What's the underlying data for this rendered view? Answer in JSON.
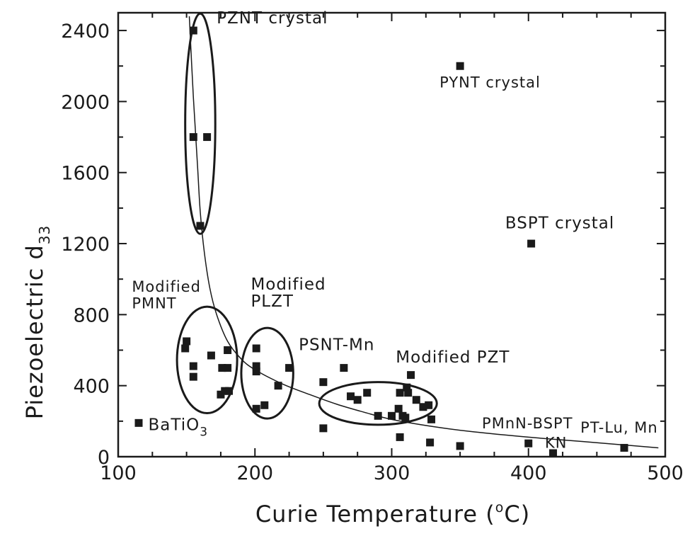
{
  "chart_data": {
    "type": "scatter",
    "title": "",
    "xlabel": "Curie Temperature (°C)",
    "xlabel_main": "Curie Temperature (",
    "xlabel_sup": "o",
    "xlabel_end": "C)",
    "ylabel": "Piezoelectric d33",
    "ylabel_main": "Piezoelectric d",
    "ylabel_sub": "33",
    "xlim": [
      100,
      500
    ],
    "ylim": [
      0,
      2500
    ],
    "xticks": [
      100,
      200,
      300,
      400,
      500
    ],
    "yticks": [
      0,
      400,
      800,
      1200,
      1600,
      2000,
      2400
    ],
    "grid": false,
    "legend": "none",
    "marker_color": "#1a1a1a",
    "series": [
      {
        "group": "PZNT crystal",
        "points": [
          [
            155,
            2400
          ],
          [
            155,
            1800
          ],
          [
            165,
            1800
          ],
          [
            160,
            1300
          ]
        ]
      },
      {
        "group": "PYNT crystal",
        "points": [
          [
            350,
            2200
          ]
        ]
      },
      {
        "group": "BSPT crystal",
        "points": [
          [
            402,
            1200
          ]
        ]
      },
      {
        "group": "Modified PMNT",
        "points": [
          [
            150,
            650
          ],
          [
            149,
            610
          ],
          [
            155,
            510
          ],
          [
            155,
            450
          ],
          [
            168,
            570
          ],
          [
            175,
            350
          ],
          [
            178,
            370
          ],
          [
            176,
            500
          ],
          [
            180,
            500
          ],
          [
            181,
            370
          ],
          [
            180,
            600
          ]
        ]
      },
      {
        "group": "Modified PLZT",
        "points": [
          [
            201,
            610
          ],
          [
            201,
            510
          ],
          [
            201,
            480
          ],
          [
            201,
            270
          ],
          [
            207,
            290
          ],
          [
            217,
            400
          ],
          [
            225,
            500
          ]
        ]
      },
      {
        "group": "PSNT-Mn",
        "points": [
          [
            265,
            500
          ]
        ]
      },
      {
        "group": "Modified PZT",
        "points": [
          [
            250,
            420
          ],
          [
            250,
            160
          ],
          [
            270,
            340
          ],
          [
            275,
            320
          ],
          [
            282,
            360
          ],
          [
            290,
            230
          ],
          [
            300,
            230
          ],
          [
            305,
            270
          ],
          [
            306,
            360
          ],
          [
            306,
            110
          ],
          [
            308,
            230
          ],
          [
            310,
            220
          ],
          [
            311,
            390
          ],
          [
            312,
            360
          ],
          [
            314,
            460
          ],
          [
            318,
            320
          ],
          [
            323,
            280
          ],
          [
            327,
            290
          ],
          [
            329,
            210
          ],
          [
            328,
            80
          ]
        ]
      },
      {
        "group": "BaTiO3",
        "points": [
          [
            115,
            190
          ]
        ]
      },
      {
        "group": "PMnN-BSPT",
        "points": [
          [
            350,
            60
          ],
          [
            400,
            75
          ]
        ]
      },
      {
        "group": "KN",
        "points": [
          [
            418,
            20
          ]
        ]
      },
      {
        "group": "PT-Lu, Mn",
        "points": [
          [
            470,
            50
          ]
        ]
      }
    ],
    "trend_curve": {
      "points": [
        [
          152,
          2480
        ],
        [
          155,
          2020
        ],
        [
          158,
          1640
        ],
        [
          160,
          1380
        ],
        [
          163,
          1150
        ],
        [
          167,
          950
        ],
        [
          172,
          800
        ],
        [
          180,
          650
        ],
        [
          190,
          550
        ],
        [
          200,
          490
        ],
        [
          220,
          410
        ],
        [
          240,
          350
        ],
        [
          260,
          295
        ],
        [
          280,
          250
        ],
        [
          300,
          210
        ],
        [
          330,
          170
        ],
        [
          360,
          140
        ],
        [
          400,
          110
        ],
        [
          440,
          85
        ],
        [
          495,
          50
        ]
      ]
    },
    "ellipses": [
      {
        "label": "PZNT crystal",
        "cx": 160,
        "cy": 1875,
        "rx": 11,
        "ry": 620
      },
      {
        "label": "Modified PMNT",
        "cx": 165,
        "cy": 545,
        "rx": 22,
        "ry": 300
      },
      {
        "label": "Modified PLZT",
        "cx": 209,
        "cy": 470,
        "rx": 19,
        "ry": 255
      },
      {
        "label": "Modified PZT",
        "cx": 290,
        "cy": 300,
        "rx": 43,
        "ry": 120
      }
    ],
    "annotations": [
      {
        "text": "PZNT crystal",
        "x": 172,
        "y": 2440,
        "style": "anno"
      },
      {
        "text": "PYNT crystal",
        "x": 335,
        "y": 2080,
        "style": "anno-sm"
      },
      {
        "text": "BSPT crystal",
        "x": 383,
        "y": 1285,
        "style": "anno"
      },
      {
        "text": "Modified",
        "x": 110,
        "y": 930,
        "style": "anno-sm"
      },
      {
        "text": "PMNT",
        "x": 110,
        "y": 835,
        "style": "anno-sm"
      },
      {
        "text": "Modified",
        "x": 197,
        "y": 940,
        "style": "anno"
      },
      {
        "text": "PLZT",
        "x": 197,
        "y": 845,
        "style": "anno"
      },
      {
        "text": "PSNT-Mn",
        "x": 232,
        "y": 600,
        "style": "anno"
      },
      {
        "text": "Modified PZT",
        "x": 303,
        "y": 530,
        "style": "anno"
      },
      {
        "text": "PMnN-BSPT",
        "x": 366,
        "y": 160,
        "style": "anno-sm"
      },
      {
        "text": "KN",
        "x": 412,
        "y": 50,
        "style": "anno-sm"
      },
      {
        "text": "PT-Lu, Mn",
        "x": 438,
        "y": 135,
        "style": "anno-sm"
      }
    ],
    "batio3_label": {
      "main": "BaTiO",
      "sub": "3",
      "x": 122,
      "y": 150
    }
  }
}
